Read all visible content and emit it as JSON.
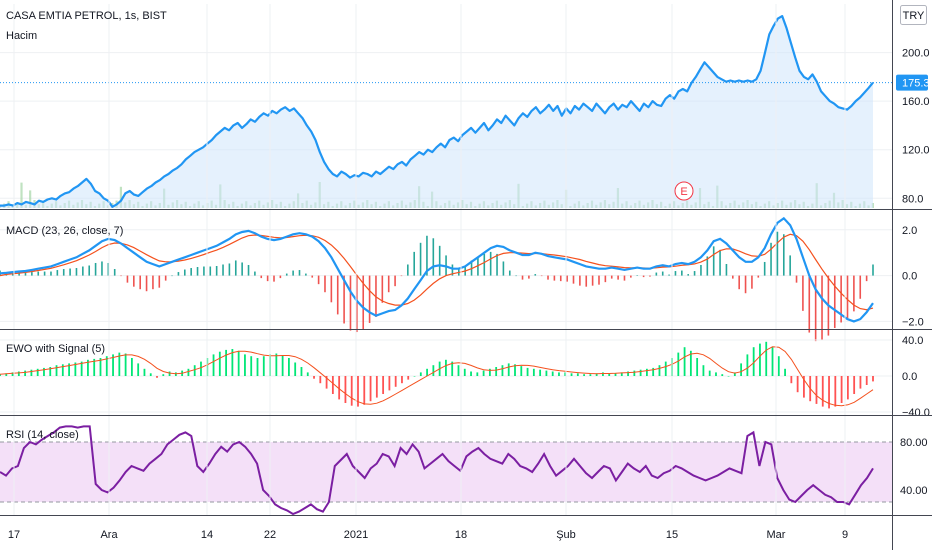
{
  "header": {
    "symbol_title": "CASA EMTIA PETROL, 1s, BIST",
    "volume_label": "Hacim",
    "currency_button": "TRY"
  },
  "colors": {
    "price": "#2196f3",
    "price_fill": "#cfe6fb",
    "macd": "#2196f3",
    "signal": "#f4511e",
    "hist_pos": "#26a69a",
    "hist_neg": "#ef5350",
    "ewo_pos": "#00e676",
    "ewo_neg": "#ff5252",
    "rsi": "#7b1fa2",
    "rsi_band": "#f1d8f6",
    "badge": "#2196f3",
    "earnings": "#f23645"
  },
  "earnings_marker": {
    "label": "E",
    "date": "Şub 16"
  },
  "chart_data": [
    {
      "type": "area",
      "title": "CASA EMTIA PETROL, 1s, BIST",
      "last_value": 175.3,
      "last_value_label": "175.3",
      "y_ticks": [
        80.0,
        120.0,
        160.0,
        200.0
      ],
      "y_tick_labels": [
        "80.0",
        "120.0",
        "160.0",
        "200.0"
      ],
      "ylim": [
        72,
        240
      ],
      "x_tick_labels": [
        "17",
        "Ara",
        "14",
        "22",
        "2021",
        "18",
        "Şub",
        "15",
        "Mar",
        "9"
      ],
      "values": [
        74,
        74,
        75,
        74,
        76,
        75,
        77,
        76,
        75,
        78,
        77,
        79,
        80,
        79,
        82,
        84,
        85,
        88,
        90,
        93,
        96,
        92,
        86,
        84,
        80,
        78,
        73,
        75,
        78,
        84,
        86,
        83,
        82,
        85,
        88,
        90,
        93,
        95,
        98,
        100,
        103,
        105,
        108,
        112,
        115,
        118,
        120,
        122,
        125,
        128,
        132,
        135,
        138,
        136,
        140,
        142,
        138,
        141,
        145,
        143,
        147,
        150,
        148,
        152,
        150,
        153,
        155,
        152,
        154,
        150,
        146,
        140,
        135,
        128,
        118,
        110,
        104,
        100,
        98,
        102,
        100,
        97,
        99,
        98,
        101,
        100,
        98,
        102,
        100,
        103,
        106,
        104,
        108,
        110,
        107,
        112,
        115,
        118,
        116,
        120,
        118,
        122,
        125,
        122,
        128,
        130,
        127,
        132,
        135,
        138,
        134,
        138,
        142,
        136,
        140,
        145,
        142,
        148,
        144,
        140,
        146,
        150,
        147,
        152,
        155,
        150,
        153,
        157,
        152,
        156,
        148,
        154,
        150,
        156,
        153,
        158,
        155,
        152,
        158,
        154,
        150,
        155,
        158,
        153,
        157,
        155,
        160,
        156,
        152,
        158,
        155,
        160,
        157,
        156,
        162,
        165,
        162,
        168,
        170,
        168,
        175,
        180,
        186,
        192,
        188,
        184,
        180,
        178,
        176,
        177,
        176,
        177,
        176,
        177,
        176,
        178,
        185,
        200,
        215,
        222,
        228,
        230,
        220,
        208,
        196,
        185,
        180,
        178,
        182,
        176,
        168,
        164,
        160,
        158,
        155,
        154,
        153,
        156,
        160,
        163,
        167,
        171,
        175.3
      ]
    },
    {
      "type": "line",
      "title": "MACD (23, 26, close, 7)",
      "y_ticks": [
        -2.0,
        0.0,
        2.0
      ],
      "y_tick_labels": [
        "−2.0",
        "0.0",
        "2.0"
      ],
      "ylim": [
        -2.2,
        2.6
      ],
      "series": [
        {
          "values": [
            0.1,
            0.12,
            0.15,
            0.18,
            0.2,
            0.25,
            0.3,
            0.35,
            0.4,
            0.5,
            0.6,
            0.7,
            0.8,
            0.95,
            1.1,
            1.3,
            1.5,
            1.6,
            1.55,
            1.4,
            1.2,
            1.0,
            0.8,
            0.6,
            0.5,
            0.4,
            0.5,
            0.6,
            0.7,
            0.8,
            0.9,
            1.0,
            1.1,
            1.2,
            1.3,
            1.45,
            1.6,
            1.8,
            1.9,
            1.95,
            1.85,
            1.7,
            1.6,
            1.55,
            1.6,
            1.7,
            1.8,
            1.85,
            1.8,
            1.7,
            1.5,
            1.2,
            0.8,
            0.3,
            -0.2,
            -0.7,
            -1.1,
            -1.4,
            -1.6,
            -1.75,
            -1.65,
            -1.55,
            -1.5,
            -1.3,
            -1.0,
            -0.6,
            -0.2,
            0.2,
            0.4,
            0.45,
            0.4,
            0.3,
            0.3,
            0.4,
            0.6,
            0.8,
            1.0,
            1.2,
            1.3,
            1.25,
            1.1,
            1.0,
            0.9,
            0.9,
            1.0,
            0.95,
            0.85,
            0.8,
            0.75,
            0.7,
            0.6,
            0.5,
            0.4,
            0.35,
            0.3,
            0.3,
            0.35,
            0.3,
            0.25,
            0.3,
            0.35,
            0.3,
            0.3,
            0.4,
            0.45,
            0.4,
            0.5,
            0.55,
            0.5,
            0.6,
            0.8,
            1.1,
            1.5,
            1.6,
            1.4,
            1.1,
            0.8,
            0.6,
            0.6,
            0.8,
            1.2,
            1.8,
            2.3,
            2.5,
            2.2,
            1.6,
            0.8,
            0.0,
            -0.6,
            -1.0,
            -1.3,
            -1.5,
            -1.7,
            -1.9,
            -2.0,
            -1.9,
            -1.6,
            -1.2
          ]
        },
        {
          "values": [
            0.0,
            0.05,
            0.08,
            0.11,
            0.14,
            0.18,
            0.22,
            0.27,
            0.32,
            0.39,
            0.47,
            0.56,
            0.65,
            0.77,
            0.9,
            1.05,
            1.22,
            1.35,
            1.42,
            1.41,
            1.34,
            1.22,
            1.07,
            0.91,
            0.77,
            0.64,
            0.6,
            0.6,
            0.63,
            0.68,
            0.75,
            0.83,
            0.92,
            1.02,
            1.11,
            1.23,
            1.36,
            1.5,
            1.64,
            1.74,
            1.77,
            1.75,
            1.71,
            1.67,
            1.65,
            1.66,
            1.7,
            1.74,
            1.76,
            1.74,
            1.67,
            1.53,
            1.33,
            1.07,
            0.75,
            0.39,
            0.02,
            -0.34,
            -0.66,
            -0.93,
            -1.11,
            -1.22,
            -1.29,
            -1.29,
            -1.22,
            -1.07,
            -0.85,
            -0.59,
            -0.34,
            -0.14,
            0.0,
            0.08,
            0.14,
            0.2,
            0.3,
            0.43,
            0.57,
            0.73,
            0.87,
            0.97,
            1.0,
            1.0,
            0.98,
            0.96,
            0.97,
            0.96,
            0.93,
            0.9,
            0.86,
            0.82,
            0.76,
            0.7,
            0.62,
            0.55,
            0.48,
            0.43,
            0.41,
            0.38,
            0.35,
            0.34,
            0.34,
            0.33,
            0.32,
            0.34,
            0.37,
            0.38,
            0.41,
            0.45,
            0.47,
            0.51,
            0.59,
            0.72,
            0.92,
            1.09,
            1.17,
            1.16,
            1.07,
            0.95,
            0.86,
            0.84,
            0.93,
            1.15,
            1.43,
            1.68,
            1.8,
            1.74,
            1.5,
            1.13,
            0.7,
            0.28,
            -0.11,
            -0.46,
            -0.77,
            -1.05,
            -1.29,
            -1.44,
            -1.49,
            -1.42
          ]
        }
      ]
    },
    {
      "type": "bar",
      "title": "EWO with Signal (5)",
      "y_ticks": [
        -40.0,
        0.0,
        40.0
      ],
      "y_tick_labels": [
        "−40.0",
        "0.0",
        "40.0"
      ],
      "ylim": [
        -40,
        40
      ],
      "values": [
        2,
        3,
        4,
        5,
        6,
        7,
        8,
        9,
        10,
        12,
        13,
        14,
        15,
        16,
        18,
        19,
        20,
        22,
        24,
        26,
        25,
        20,
        14,
        8,
        3,
        -2,
        2,
        5,
        4,
        6,
        8,
        12,
        16,
        20,
        24,
        27,
        29,
        30,
        28,
        24,
        22,
        20,
        22,
        24,
        25,
        23,
        20,
        15,
        10,
        4,
        -3,
        -8,
        -14,
        -20,
        -26,
        -30,
        -33,
        -34,
        -32,
        -28,
        -24,
        -20,
        -16,
        -12,
        -8,
        -4,
        0,
        4,
        8,
        12,
        16,
        18,
        16,
        12,
        8,
        5,
        4,
        6,
        8,
        10,
        12,
        14,
        13,
        11,
        9,
        8,
        7,
        6,
        5,
        4,
        4,
        3,
        3,
        2,
        2,
        3,
        4,
        3,
        3,
        4,
        5,
        6,
        7,
        8,
        9,
        12,
        16,
        20,
        26,
        32,
        28,
        20,
        12,
        6,
        4,
        2,
        0,
        4,
        14,
        24,
        32,
        36,
        38,
        32,
        22,
        8,
        -8,
        -18,
        -24,
        -28,
        -31,
        -34,
        -36,
        -34,
        -30,
        -26,
        -20,
        -14,
        -10,
        -6
      ]
    },
    {
      "type": "line",
      "title": "RSI (14, close)",
      "y_ticks": [
        40.0,
        80.0
      ],
      "y_tick_labels": [
        "40.00",
        "80.00"
      ],
      "ylim": [
        20,
        100
      ],
      "upper_band": 80,
      "lower_band": 30,
      "values": [
        55,
        52,
        58,
        60,
        75,
        80,
        78,
        82,
        85,
        88,
        92,
        93,
        93,
        92,
        93,
        93,
        45,
        40,
        38,
        42,
        48,
        55,
        60,
        58,
        56,
        62,
        66,
        70,
        78,
        82,
        86,
        88,
        85,
        60,
        55,
        62,
        70,
        76,
        72,
        78,
        80,
        76,
        70,
        62,
        40,
        35,
        28,
        25,
        23,
        20,
        22,
        25,
        28,
        24,
        22,
        30,
        60,
        65,
        70,
        60,
        55,
        50,
        58,
        62,
        70,
        68,
        60,
        75,
        70,
        78,
        72,
        58,
        62,
        66,
        70,
        64,
        60,
        56,
        68,
        72,
        75,
        70,
        66,
        64,
        62,
        70,
        66,
        60,
        58,
        55,
        62,
        70,
        60,
        52,
        56,
        60,
        66,
        60,
        54,
        50,
        55,
        60,
        58,
        48,
        55,
        62,
        58,
        55,
        60,
        52,
        50,
        54,
        56,
        60,
        58,
        55,
        52,
        50,
        48,
        50,
        52,
        55,
        58,
        56,
        54,
        85,
        88,
        60,
        80,
        78,
        50,
        40,
        32,
        30,
        35,
        40,
        44,
        40,
        36,
        34,
        30,
        30,
        28,
        36,
        44,
        50,
        58
      ]
    }
  ]
}
